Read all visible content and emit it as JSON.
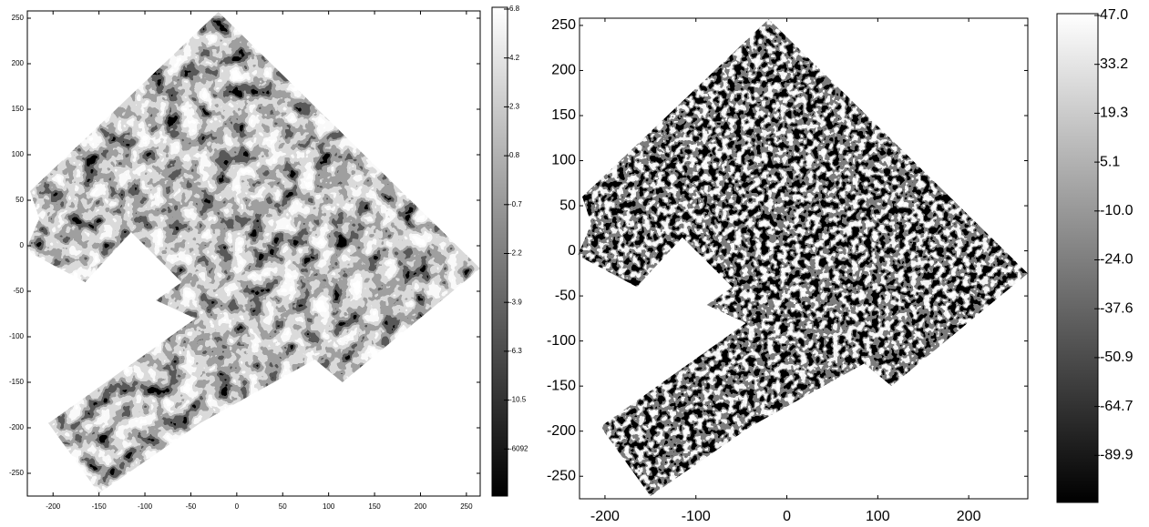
{
  "chart_data": [
    {
      "type": "heatmap",
      "xlim": [
        -228,
        265
      ],
      "ylim": [
        -275,
        258
      ],
      "xticks": [
        -200,
        -150,
        -100,
        -50,
        0,
        50,
        100,
        150,
        200,
        250
      ],
      "yticks": [
        -250,
        -200,
        -150,
        -100,
        -50,
        0,
        50,
        100,
        150,
        200,
        250
      ],
      "colorbar_ticks": [
        6.8,
        4.2,
        2.3,
        0.8,
        -0.7,
        -2.2,
        -3.9,
        -6.3,
        -10.5,
        -6092
      ]
    },
    {
      "type": "heatmap",
      "xlim": [
        -228,
        265
      ],
      "ylim": [
        -275,
        258
      ],
      "xticks": [
        -200,
        -100,
        0,
        100,
        200
      ],
      "yticks": [
        -250,
        -200,
        -150,
        -100,
        -50,
        0,
        50,
        100,
        150,
        200,
        250
      ],
      "colorbar_ticks": [
        {
          "value": 47,
          "label": "47.0"
        },
        33.2,
        19.3,
        5.1,
        {
          "value": -10,
          "label": "-10.0"
        },
        {
          "value": -24,
          "label": "-24.0"
        },
        -37.6,
        -50.9,
        -64.7,
        -89.9
      ]
    }
  ]
}
